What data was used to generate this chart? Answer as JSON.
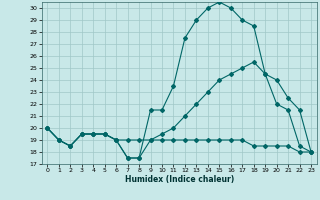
{
  "xlabel": "Humidex (Indice chaleur)",
  "xlim": [
    -0.5,
    23.5
  ],
  "ylim": [
    17,
    30.5
  ],
  "yticks": [
    17,
    18,
    19,
    20,
    21,
    22,
    23,
    24,
    25,
    26,
    27,
    28,
    29,
    30
  ],
  "xticks": [
    0,
    1,
    2,
    3,
    4,
    5,
    6,
    7,
    8,
    9,
    10,
    11,
    12,
    13,
    14,
    15,
    16,
    17,
    18,
    19,
    20,
    21,
    22,
    23
  ],
  "bg_color": "#c8e8e8",
  "grid_color": "#a0c8c8",
  "line_color": "#006666",
  "line1_x": [
    0,
    1,
    2,
    3,
    4,
    5,
    6,
    7,
    8,
    9,
    10,
    11,
    12,
    13,
    14,
    15,
    16,
    17,
    18,
    19,
    20,
    21,
    22,
    23
  ],
  "line1_y": [
    20,
    19,
    18.5,
    19.5,
    19.5,
    19.5,
    19,
    17.5,
    17.5,
    21.5,
    21.5,
    23.5,
    27.5,
    29,
    30,
    30.5,
    30,
    29,
    28.5,
    24.5,
    22,
    21.5,
    18.5,
    18
  ],
  "line2_x": [
    0,
    1,
    2,
    3,
    4,
    5,
    6,
    7,
    8,
    9,
    10,
    11,
    12,
    13,
    14,
    15,
    16,
    17,
    18,
    19,
    20,
    21,
    22,
    23
  ],
  "line2_y": [
    20,
    19,
    18.5,
    19.5,
    19.5,
    19.5,
    19,
    17.5,
    17.5,
    19,
    19,
    19,
    19,
    19,
    19,
    19,
    19,
    19,
    18.5,
    18.5,
    18.5,
    18.5,
    18,
    18
  ],
  "line3_x": [
    0,
    1,
    2,
    3,
    4,
    5,
    6,
    7,
    8,
    9,
    10,
    11,
    12,
    13,
    14,
    15,
    16,
    17,
    18,
    19,
    20,
    21,
    22,
    23
  ],
  "line3_y": [
    20,
    19,
    18.5,
    19.5,
    19.5,
    19.5,
    19,
    19,
    19,
    19,
    19.5,
    20,
    21,
    22,
    23,
    24,
    24.5,
    25,
    25.5,
    24.5,
    24,
    22.5,
    21.5,
    18
  ]
}
